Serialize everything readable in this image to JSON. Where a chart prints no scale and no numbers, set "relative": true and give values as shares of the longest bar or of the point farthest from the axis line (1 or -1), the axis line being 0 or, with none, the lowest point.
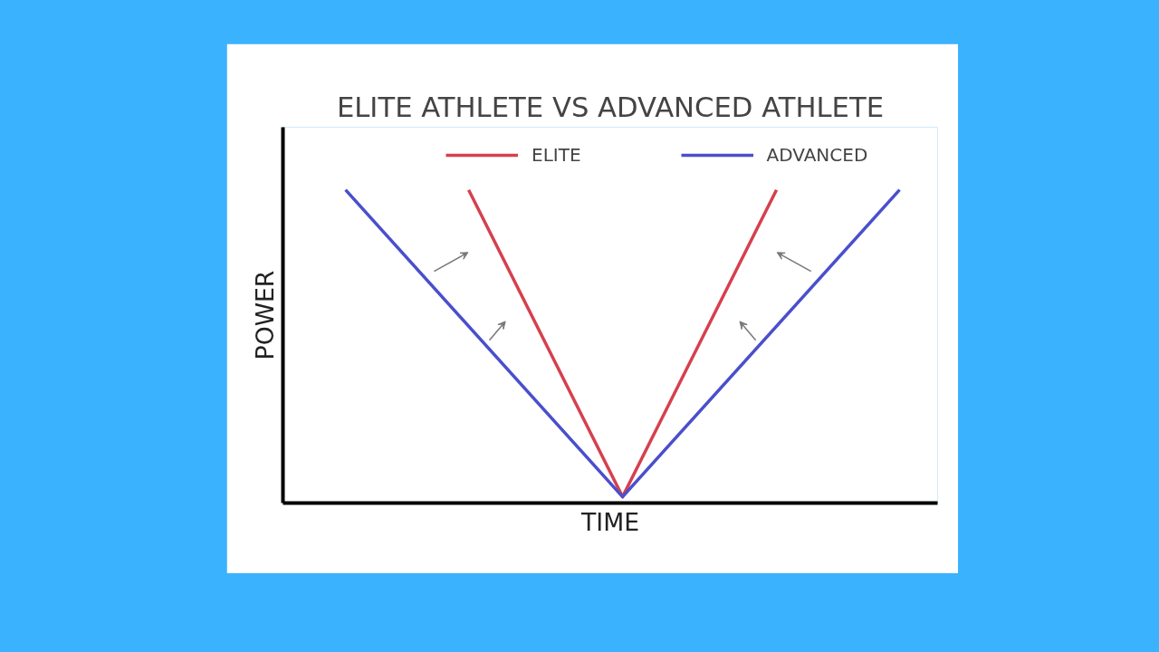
{
  "chart_data": {
    "type": "line",
    "title": "ELITE ATHLETE VS ADVANCED ATHLETE",
    "xlabel": "TIME",
    "ylabel": "POWER",
    "relative": true,
    "legend": "top",
    "marker": "none",
    "line_style": "solid",
    "categories": [
      null,
      null,
      null,
      null,
      null,
      null,
      null,
      null,
      null,
      null,
      null,
      null,
      null,
      null,
      null,
      null,
      null,
      null,
      null
    ],
    "series": [
      {
        "name": "ELITE",
        "color": "#d6404e",
        "values": [
          null,
          null,
          null,
          null,
          1,
          null,
          null,
          null,
          null,
          0.02,
          null,
          null,
          null,
          null,
          1,
          null,
          null,
          null,
          null
        ]
      },
      {
        "name": "ADVANCED",
        "color": "#4a4fcc",
        "values": [
          1,
          null,
          null,
          null,
          null,
          null,
          null,
          null,
          null,
          0.02,
          null,
          null,
          null,
          null,
          null,
          null,
          null,
          null,
          1
        ]
      }
    ]
  }
}
